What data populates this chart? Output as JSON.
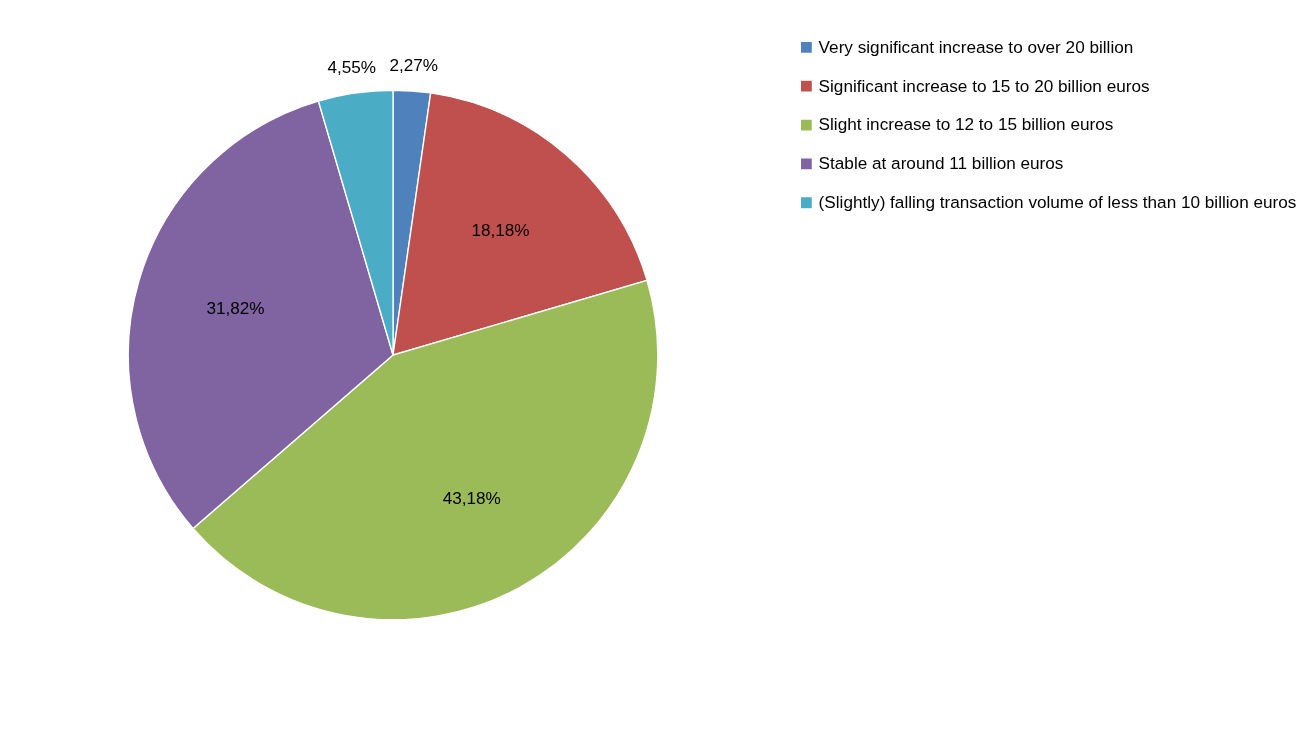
{
  "chart_data": {
    "type": "pie",
    "categories": [
      "Very significant increase to over 20 billion",
      "Significant increase to 15 to 20 billion euros",
      "Slight increase to 12 to 15 billion euros",
      "Stable at around 11 billion euros",
      "(Slightly) falling transaction volume of less than 10 billion euros"
    ],
    "values": [
      2.27,
      18.18,
      43.18,
      31.82,
      4.55
    ],
    "colors": [
      "#4f81bd",
      "#c0504d",
      "#9bbb59",
      "#8064a2",
      "#4bacc6"
    ],
    "value_labels": [
      "2,27%",
      "18,18%",
      "43,18%",
      "31,82%",
      "4,55%"
    ],
    "legend": "right"
  }
}
